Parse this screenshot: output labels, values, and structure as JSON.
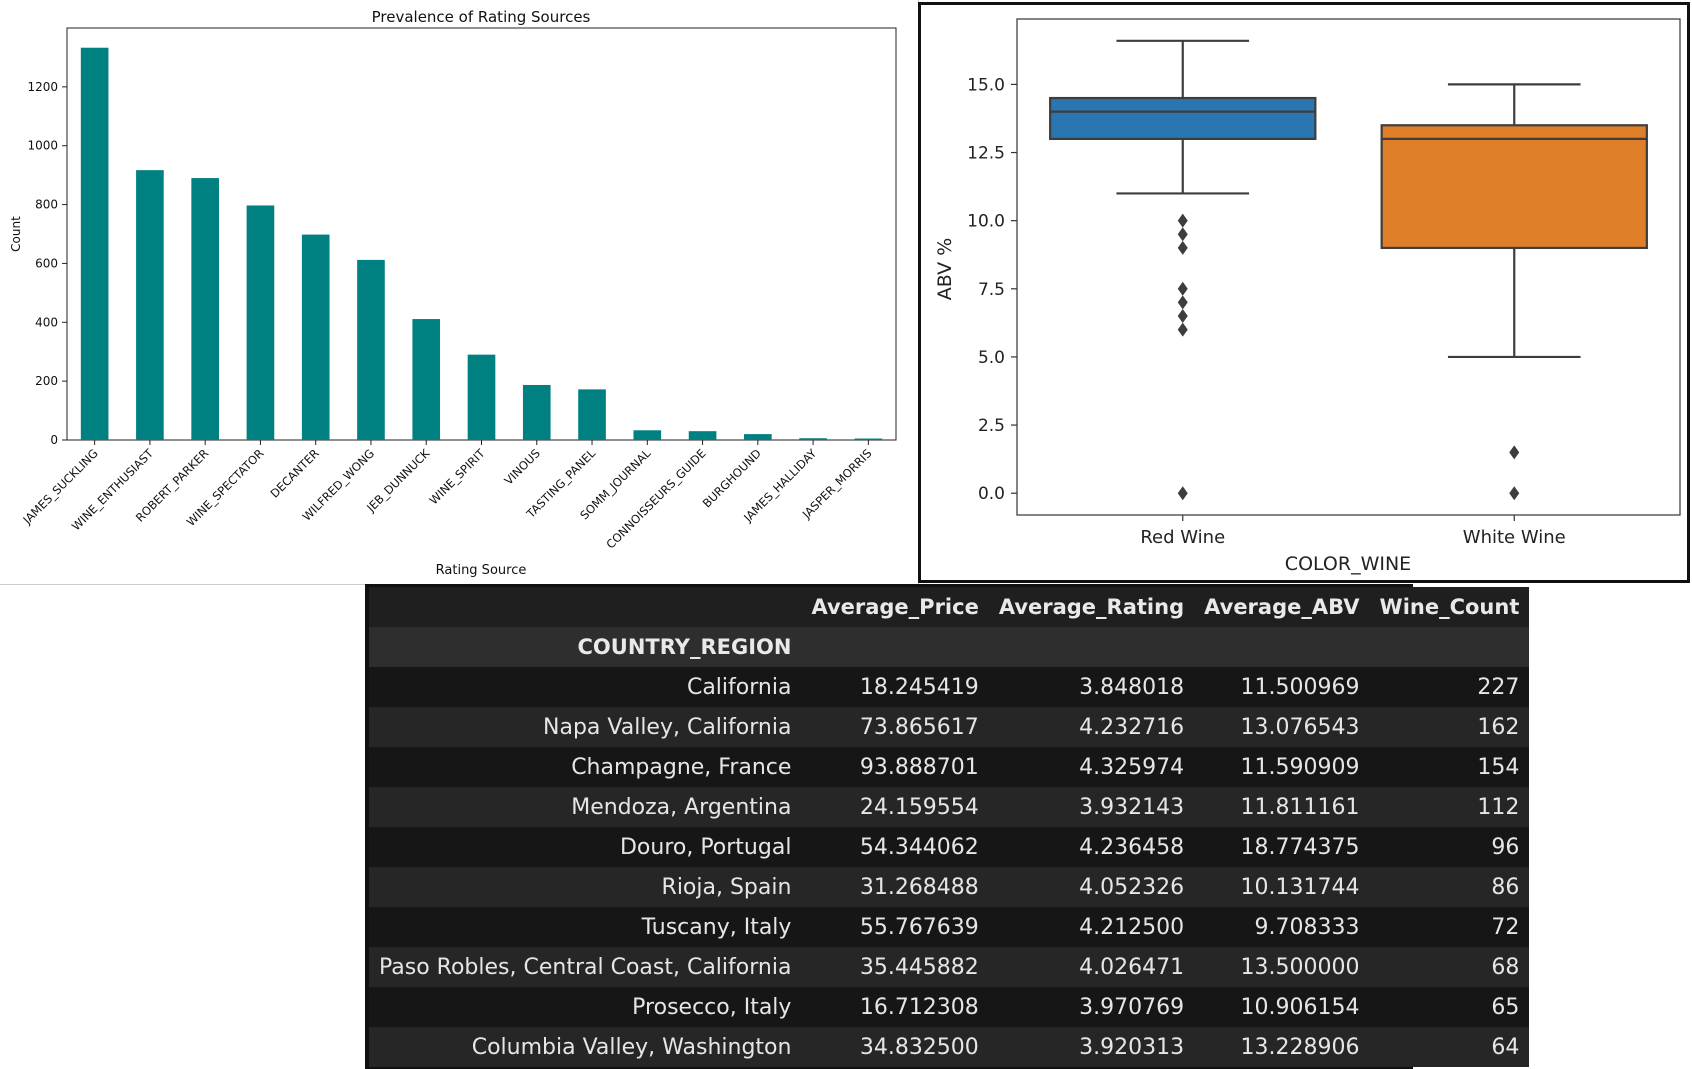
{
  "chart_data": [
    {
      "type": "bar",
      "title": "Prevalence of Rating Sources",
      "xlabel": "Rating Source",
      "ylabel": "Count",
      "categories": [
        "JAMES_SUCKLING",
        "WINE_ENTHUSIAST",
        "ROBERT_PARKER",
        "WINE_SPECTATOR",
        "DECANTER",
        "WILFRED_WONG",
        "JEB_DUNNUCK",
        "WINE_SPIRIT",
        "VINOUS",
        "TASTING_PANEL",
        "SOMM_JOURNAL",
        "CONNOISSEURS_GUIDE",
        "BURGHOUND",
        "JAMES_HALLIDAY",
        "JASPER_MORRIS"
      ],
      "values": [
        1333,
        917,
        890,
        797,
        698,
        612,
        411,
        290,
        187,
        172,
        33,
        30,
        20,
        6,
        5
      ],
      "yticks": [
        0,
        200,
        400,
        600,
        800,
        1000,
        1200
      ],
      "ylim": [
        0,
        1400
      ],
      "color": "#008080",
      "grid": false
    },
    {
      "type": "box",
      "xlabel": "COLOR_WINE",
      "ylabel": "ABV %",
      "categories": [
        "Red Wine",
        "White Wine"
      ],
      "yticks": [
        "0.0",
        "2.5",
        "5.0",
        "7.5",
        "10.0",
        "12.5",
        "15.0"
      ],
      "ylim": [
        -0.8,
        17.4
      ],
      "boxes": [
        {
          "name": "Red Wine",
          "whisker_low": 11.0,
          "q1": 13.0,
          "median": 14.0,
          "q3": 14.5,
          "whisker_high": 16.6,
          "outliers": [
            10.0,
            9.5,
            9.0,
            7.5,
            7.0,
            6.5,
            6.0,
            0.0
          ],
          "color": "#2a76b1"
        },
        {
          "name": "White Wine",
          "whisker_low": 5.0,
          "q1": 9.0,
          "median": 13.0,
          "q3": 13.5,
          "whisker_high": 15.0,
          "outliers": [
            1.5,
            0.0
          ],
          "color": "#e07f2a"
        }
      ],
      "grid": false
    },
    {
      "type": "table",
      "columns": [
        "Average_Price",
        "Average_Rating",
        "Average_ABV",
        "Wine_Count"
      ],
      "index_name": "COUNTRY_REGION",
      "rows": [
        {
          "region": "California",
          "values": [
            "18.245419",
            "3.848018",
            "11.500969",
            "227"
          ]
        },
        {
          "region": "Napa Valley, California",
          "values": [
            "73.865617",
            "4.232716",
            "13.076543",
            "162"
          ]
        },
        {
          "region": "Champagne, France",
          "values": [
            "93.888701",
            "4.325974",
            "11.590909",
            "154"
          ]
        },
        {
          "region": "Mendoza, Argentina",
          "values": [
            "24.159554",
            "3.932143",
            "11.811161",
            "112"
          ]
        },
        {
          "region": "Douro, Portugal",
          "values": [
            "54.344062",
            "4.236458",
            "18.774375",
            "96"
          ]
        },
        {
          "region": "Rioja, Spain",
          "values": [
            "31.268488",
            "4.052326",
            "10.131744",
            "86"
          ]
        },
        {
          "region": "Tuscany, Italy",
          "values": [
            "55.767639",
            "4.212500",
            "9.708333",
            "72"
          ]
        },
        {
          "region": "Paso Robles, Central Coast, California",
          "values": [
            "35.445882",
            "4.026471",
            "13.500000",
            "68"
          ]
        },
        {
          "region": "Prosecco, Italy",
          "values": [
            "16.712308",
            "3.970769",
            "10.906154",
            "65"
          ]
        },
        {
          "region": "Columbia Valley, Washington",
          "values": [
            "34.832500",
            "3.920313",
            "13.228906",
            "64"
          ]
        }
      ]
    }
  ]
}
